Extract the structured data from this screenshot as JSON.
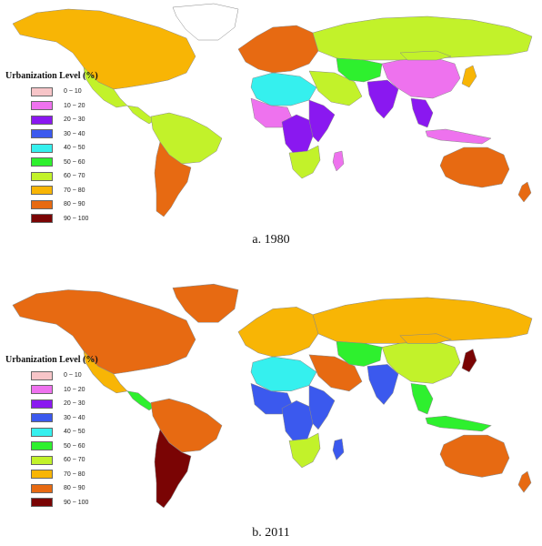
{
  "legend_title": "Urbanization Level (%)",
  "legend_items": [
    {
      "range": "0  ~  10",
      "color": "#f7c5c8"
    },
    {
      "range": "10  ~  20",
      "color": "#ee72ee"
    },
    {
      "range": "20  ~  30",
      "color": "#8a18f0"
    },
    {
      "range": "30  ~  40",
      "color": "#3b59ee"
    },
    {
      "range": "40  ~  50",
      "color": "#35f0ee"
    },
    {
      "range": "50  ~  60",
      "color": "#2ef02e"
    },
    {
      "range": "60  ~  70",
      "color": "#c2f22a"
    },
    {
      "range": "70  ~  80",
      "color": "#f8b505"
    },
    {
      "range": "80  ~  90",
      "color": "#e76a12"
    },
    {
      "range": "90  ~  100",
      "color": "#7a0404"
    }
  ],
  "maps": [
    {
      "caption": "a. 1980",
      "regions": {
        "north-america": "#f8b505",
        "greenland": "#ffffff",
        "mexico": "#c2f22a",
        "central-america": "#c2f22a",
        "south-america-north": "#c2f22a",
        "southern-cone": "#e76a12",
        "europe": "#e76a12",
        "russia": "#c2f22a",
        "middle-east": "#c2f22a",
        "north-africa": "#35f0ee",
        "west-africa": "#ee72ee",
        "central-africa": "#8a18f0",
        "east-africa": "#8a18f0",
        "southern-africa": "#c2f22a",
        "madagascar": "#ee72ee",
        "central-asia": "#2ef02e",
        "india": "#8a18f0",
        "china": "#ee72ee",
        "mongolia": "#c2f22a",
        "southeast-asia": "#8a18f0",
        "indonesia": "#ee72ee",
        "japan": "#f8b505",
        "australia": "#e76a12",
        "new-zealand": "#e76a12"
      }
    },
    {
      "caption": "b. 2011",
      "regions": {
        "north-america": "#e76a12",
        "greenland": "#e76a12",
        "mexico": "#f8b505",
        "central-america": "#2ef02e",
        "south-america-north": "#e76a12",
        "southern-cone": "#7a0404",
        "europe": "#f8b505",
        "russia": "#f8b505",
        "middle-east": "#e76a12",
        "north-africa": "#35f0ee",
        "west-africa": "#3b59ee",
        "central-africa": "#3b59ee",
        "east-africa": "#3b59ee",
        "southern-africa": "#c2f22a",
        "madagascar": "#3b59ee",
        "central-asia": "#2ef02e",
        "india": "#3b59ee",
        "china": "#c2f22a",
        "mongolia": "#f8b505",
        "southeast-asia": "#2ef02e",
        "indonesia": "#2ef02e",
        "japan": "#7a0404",
        "australia": "#e76a12",
        "new-zealand": "#e76a12"
      }
    }
  ]
}
